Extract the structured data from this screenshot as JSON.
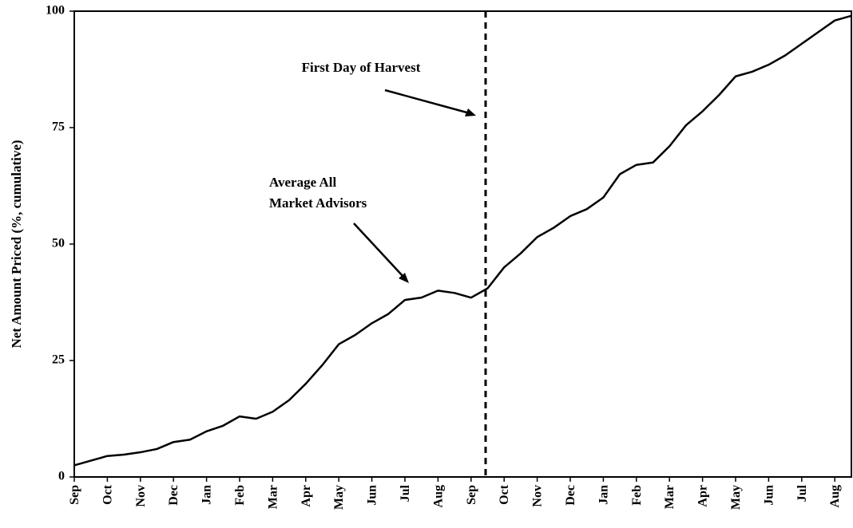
{
  "chart_data": {
    "type": "line",
    "y_label": "Net Amount Priced (%, cumulative)",
    "annotations": [
      "First Day of Harvest",
      "Average All",
      "Market Advisors"
    ],
    "categories": [
      "Sep",
      null,
      "Oct",
      null,
      "Nov",
      null,
      "Dec",
      null,
      "Jan",
      null,
      "Feb",
      null,
      "Mar",
      null,
      "Apr",
      null,
      "May",
      null,
      "Jun",
      null,
      "Jul",
      null,
      "Aug",
      null,
      "Sep",
      null,
      "Oct",
      null,
      "Nov",
      null,
      "Dec",
      null,
      "Jan",
      null,
      "Feb",
      null,
      "Mar",
      null,
      "Apr",
      null,
      "May",
      null,
      "Jun",
      null,
      "Jul",
      null,
      "Aug",
      null
    ],
    "series": [
      {
        "name": "Average All Market Advisors",
        "color": "#000000",
        "values": [
          2.5,
          3.5,
          4.5,
          4.8,
          5.3,
          6,
          7.5,
          8,
          9.8,
          11,
          13,
          12.5,
          14,
          16.5,
          20,
          24,
          28.5,
          30.5,
          33,
          35,
          38,
          38.5,
          40,
          39.5,
          38.5,
          40.5,
          45,
          48,
          51.5,
          53.5,
          56,
          57.5,
          60,
          65,
          67,
          67.5,
          71,
          75.5,
          78.5,
          82,
          86,
          87,
          88.5,
          90.5,
          93,
          95.5,
          98,
          99
        ]
      }
    ],
    "ylim": [
      0,
      100
    ],
    "yticks": [
      0,
      25,
      50,
      75,
      100
    ]
  }
}
